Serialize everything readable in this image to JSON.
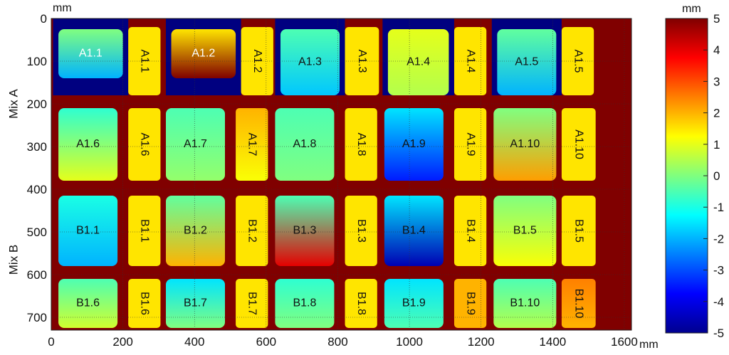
{
  "chart_data": {
    "type": "heatmap",
    "title": "",
    "x_unit": "mm",
    "y_unit": "mm",
    "colorbar_unit": "mm",
    "xlim": [
      0,
      1620
    ],
    "ylim": [
      0,
      730
    ],
    "x_ticks": [
      "0",
      "200",
      "400",
      "600",
      "800",
      "1000",
      "1200",
      "1400",
      "1600"
    ],
    "y_ticks": [
      "0",
      "100",
      "200",
      "300",
      "400",
      "500",
      "600",
      "700"
    ],
    "colorbar_range": [
      -5,
      5
    ],
    "colorbar_ticks": [
      "5",
      "4",
      "3",
      "2",
      "1",
      "0",
      "-1",
      "-2",
      "-3",
      "-4",
      "-5"
    ],
    "row_groups": [
      {
        "label": "Mix A",
        "y_range": [
          0,
          400
        ]
      },
      {
        "label": "Mix B",
        "y_range": [
          400,
          730
        ]
      }
    ],
    "panels": [
      {
        "label": "A1.1",
        "kind": "square",
        "x": [
          20,
          200
        ],
        "y": [
          25,
          140
        ],
        "value_top": 0,
        "value_bottom": -2,
        "background_value": -5,
        "label_color": "white"
      },
      {
        "label": "A1.1",
        "kind": "strip",
        "x": [
          215,
          305
        ],
        "y": [
          20,
          180
        ],
        "value_top": 1.5,
        "value_bottom": 1.5,
        "background_value": 5,
        "label_color": "black"
      },
      {
        "label": "A1.2",
        "kind": "square",
        "x": [
          335,
          515
        ],
        "y": [
          25,
          140
        ],
        "value_top": 1.5,
        "value_bottom": 5,
        "background_value": -5,
        "label_color": "white"
      },
      {
        "label": "A1.2",
        "kind": "strip",
        "x": [
          530,
          620
        ],
        "y": [
          20,
          180
        ],
        "value_top": 1.5,
        "value_bottom": 1.5,
        "background_value": 5,
        "label_color": "black"
      },
      {
        "label": "A1.3",
        "kind": "square",
        "x": [
          640,
          805
        ],
        "y": [
          25,
          180
        ],
        "value_top": -0.5,
        "value_bottom": -1.8,
        "background_value": -5,
        "label_color": "black"
      },
      {
        "label": "A1.3",
        "kind": "strip",
        "x": [
          820,
          915
        ],
        "y": [
          20,
          180
        ],
        "value_top": 1.5,
        "value_bottom": 1.5,
        "background_value": 5,
        "label_color": "black"
      },
      {
        "label": "A1.4",
        "kind": "square",
        "x": [
          940,
          1110
        ],
        "y": [
          25,
          180
        ],
        "value_top": 1.0,
        "value_bottom": 0.5,
        "background_value": -5,
        "label_color": "black"
      },
      {
        "label": "A1.4",
        "kind": "strip",
        "x": [
          1125,
          1215
        ],
        "y": [
          20,
          180
        ],
        "value_top": 1.5,
        "value_bottom": 1.5,
        "background_value": 5,
        "label_color": "black"
      },
      {
        "label": "A1.5",
        "kind": "square",
        "x": [
          1245,
          1410
        ],
        "y": [
          25,
          180
        ],
        "value_top": -0.3,
        "value_bottom": -2.0,
        "background_value": -5,
        "label_color": "black"
      },
      {
        "label": "A1.5",
        "kind": "strip",
        "x": [
          1425,
          1515
        ],
        "y": [
          20,
          180
        ],
        "value_top": 1.5,
        "value_bottom": 1.5,
        "background_value": 5,
        "label_color": "black"
      },
      {
        "label": "A1.6",
        "kind": "square",
        "x": [
          20,
          185
        ],
        "y": [
          210,
          380
        ],
        "value_top": -0.8,
        "value_bottom": 1.0,
        "background_value": 5,
        "label_color": "black"
      },
      {
        "label": "A1.6",
        "kind": "strip",
        "x": [
          215,
          305
        ],
        "y": [
          210,
          380
        ],
        "value_top": 1.5,
        "value_bottom": 1.5,
        "background_value": 5,
        "label_color": "black"
      },
      {
        "label": "A1.7",
        "kind": "square",
        "x": [
          320,
          485
        ],
        "y": [
          210,
          380
        ],
        "value_top": -0.5,
        "value_bottom": 0.2,
        "background_value": 5,
        "label_color": "black"
      },
      {
        "label": "A1.7",
        "kind": "strip",
        "x": [
          515,
          605
        ],
        "y": [
          210,
          380
        ],
        "value_top": 2.0,
        "value_bottom": 1.2,
        "background_value": 5,
        "label_color": "black"
      },
      {
        "label": "A1.8",
        "kind": "square",
        "x": [
          625,
          790
        ],
        "y": [
          210,
          380
        ],
        "value_top": -0.5,
        "value_bottom": 0.0,
        "background_value": 5,
        "label_color": "black"
      },
      {
        "label": "A1.8",
        "kind": "strip",
        "x": [
          820,
          910
        ],
        "y": [
          210,
          380
        ],
        "value_top": 1.5,
        "value_bottom": 1.5,
        "background_value": 5,
        "label_color": "black"
      },
      {
        "label": "A1.9",
        "kind": "square",
        "x": [
          930,
          1095
        ],
        "y": [
          210,
          380
        ],
        "value_top": -1.5,
        "value_bottom": -3.5,
        "background_value": 5,
        "label_color": "black"
      },
      {
        "label": "A1.9",
        "kind": "strip",
        "x": [
          1125,
          1215
        ],
        "y": [
          210,
          380
        ],
        "value_top": 1.5,
        "value_bottom": 1.5,
        "background_value": 5,
        "label_color": "black"
      },
      {
        "label": "A1.10",
        "kind": "square",
        "x": [
          1235,
          1410
        ],
        "y": [
          210,
          380
        ],
        "value_top": 0.0,
        "value_bottom": 2.2,
        "background_value": 5,
        "label_color": "black"
      },
      {
        "label": "A1.10",
        "kind": "strip",
        "x": [
          1425,
          1520
        ],
        "y": [
          210,
          380
        ],
        "value_top": 1.5,
        "value_bottom": 1.5,
        "background_value": 5,
        "label_color": "black"
      },
      {
        "label": "B1.1",
        "kind": "square",
        "x": [
          20,
          185
        ],
        "y": [
          415,
          580
        ],
        "value_top": -1.0,
        "value_bottom": -2.0,
        "background_value": 5,
        "label_color": "black"
      },
      {
        "label": "B1.1",
        "kind": "strip",
        "x": [
          215,
          305
        ],
        "y": [
          415,
          580
        ],
        "value_top": 1.5,
        "value_bottom": 1.5,
        "background_value": 5,
        "label_color": "black"
      },
      {
        "label": "B1.2",
        "kind": "square",
        "x": [
          320,
          485
        ],
        "y": [
          415,
          580
        ],
        "value_top": -0.3,
        "value_bottom": 2.0,
        "background_value": 5,
        "label_color": "black"
      },
      {
        "label": "B1.2",
        "kind": "strip",
        "x": [
          515,
          605
        ],
        "y": [
          415,
          580
        ],
        "value_top": 1.5,
        "value_bottom": 1.5,
        "background_value": 5,
        "label_color": "black"
      },
      {
        "label": "B1.3",
        "kind": "square",
        "x": [
          625,
          790
        ],
        "y": [
          415,
          580
        ],
        "value_top": -0.5,
        "value_bottom": 4.0,
        "background_value": 5,
        "label_color": "black"
      },
      {
        "label": "B1.3",
        "kind": "strip",
        "x": [
          820,
          910
        ],
        "y": [
          415,
          580
        ],
        "value_top": 1.5,
        "value_bottom": 1.5,
        "background_value": 5,
        "label_color": "black"
      },
      {
        "label": "B1.4",
        "kind": "square",
        "x": [
          930,
          1095
        ],
        "y": [
          415,
          580
        ],
        "value_top": -1.5,
        "value_bottom": -4.5,
        "background_value": 5,
        "label_color": "black"
      },
      {
        "label": "B1.4",
        "kind": "strip",
        "x": [
          1125,
          1215
        ],
        "y": [
          415,
          580
        ],
        "value_top": 1.5,
        "value_bottom": 1.5,
        "background_value": 5,
        "label_color": "black"
      },
      {
        "label": "B1.5",
        "kind": "square",
        "x": [
          1235,
          1410
        ],
        "y": [
          415,
          580
        ],
        "value_top": 0.0,
        "value_bottom": 1.2,
        "background_value": 5,
        "label_color": "black"
      },
      {
        "label": "B1.5",
        "kind": "strip",
        "x": [
          1425,
          1520
        ],
        "y": [
          415,
          580
        ],
        "value_top": 1.5,
        "value_bottom": 1.5,
        "background_value": 5,
        "label_color": "black"
      },
      {
        "label": "B1.6",
        "kind": "square",
        "x": [
          20,
          185
        ],
        "y": [
          610,
          725
        ],
        "value_top": -0.5,
        "value_bottom": 0.8,
        "background_value": 5,
        "label_color": "black"
      },
      {
        "label": "B1.6",
        "kind": "strip",
        "x": [
          215,
          305
        ],
        "y": [
          610,
          725
        ],
        "value_top": 1.5,
        "value_bottom": 1.5,
        "background_value": 5,
        "label_color": "black"
      },
      {
        "label": "B1.7",
        "kind": "square",
        "x": [
          320,
          485
        ],
        "y": [
          610,
          725
        ],
        "value_top": -1.5,
        "value_bottom": 0.0,
        "background_value": 5,
        "label_color": "black"
      },
      {
        "label": "B1.7",
        "kind": "strip",
        "x": [
          515,
          605
        ],
        "y": [
          610,
          725
        ],
        "value_top": 1.5,
        "value_bottom": 1.5,
        "background_value": 5,
        "label_color": "black"
      },
      {
        "label": "B1.8",
        "kind": "square",
        "x": [
          625,
          790
        ],
        "y": [
          610,
          725
        ],
        "value_top": -0.8,
        "value_bottom": 0.0,
        "background_value": 5,
        "label_color": "black"
      },
      {
        "label": "B1.8",
        "kind": "strip",
        "x": [
          820,
          910
        ],
        "y": [
          610,
          725
        ],
        "value_top": 1.5,
        "value_bottom": 1.5,
        "background_value": 5,
        "label_color": "black"
      },
      {
        "label": "B1.9",
        "kind": "square",
        "x": [
          930,
          1095
        ],
        "y": [
          610,
          725
        ],
        "value_top": -1.5,
        "value_bottom": -0.5,
        "background_value": 5,
        "label_color": "black"
      },
      {
        "label": "B1.9",
        "kind": "strip",
        "x": [
          1125,
          1215
        ],
        "y": [
          610,
          725
        ],
        "value_top": 2.0,
        "value_bottom": 2.0,
        "background_value": 5,
        "label_color": "black"
      },
      {
        "label": "B1.10",
        "kind": "square",
        "x": [
          1235,
          1410
        ],
        "y": [
          610,
          725
        ],
        "value_top": -0.5,
        "value_bottom": 0.5,
        "background_value": 5,
        "label_color": "black"
      },
      {
        "label": "B1.10",
        "kind": "strip",
        "x": [
          1425,
          1520
        ],
        "y": [
          610,
          725
        ],
        "value_top": 2.5,
        "value_bottom": 2.0,
        "background_value": 5,
        "label_color": "black"
      }
    ],
    "grid": true,
    "legend": "colorbar-right"
  }
}
